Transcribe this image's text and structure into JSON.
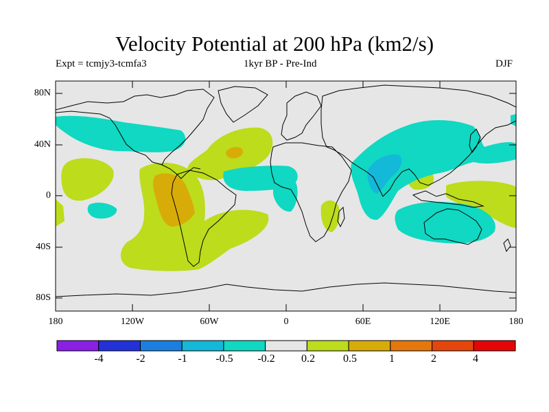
{
  "title": "Velocity Potential at 200 hPa (km2/s)",
  "subtitle_left": "Expt = tcmjy3-tcmfa3",
  "subtitle_center": "1kyr BP - Pre-Ind",
  "subtitle_right": "DJF",
  "lat_ticks": [
    "80N",
    "40N",
    "0",
    "40S",
    "80S"
  ],
  "lon_ticks": [
    "180",
    "120W",
    "60W",
    "0",
    "60E",
    "120E",
    "180"
  ],
  "colorbar": {
    "colors": [
      "#8a1fe6",
      "#2232d8",
      "#1a7fde",
      "#14b8d8",
      "#10d8c2",
      "#e6e6e6",
      "#bcdc1c",
      "#d8ac08",
      "#e4780c",
      "#e4460c",
      "#e40606"
    ],
    "labels": [
      "-4",
      "-2",
      "-1",
      "-0.5",
      "-0.2",
      "0.2",
      "0.5",
      "1",
      "2",
      "4"
    ]
  },
  "legend_colors": {
    "background": "#e6e6e6",
    "negative_small": "#10d8c2",
    "negative_medium": "#14b8d8",
    "positive_small": "#bcdc1c",
    "positive_medium": "#d8ac08",
    "positive_large": "#e4780c"
  }
}
